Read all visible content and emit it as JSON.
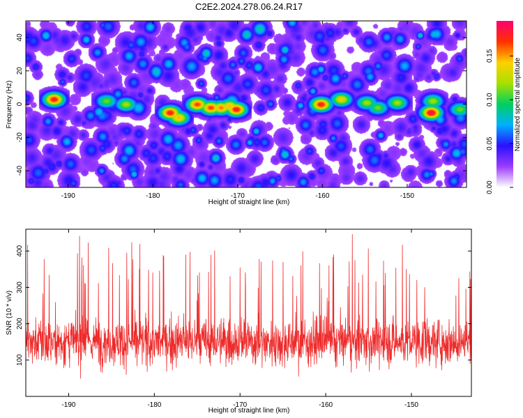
{
  "title": "C2E2.2024.278.06.24.R17",
  "colors": {
    "line": "#ee2a2a",
    "colormap": [
      "#ffffff",
      "#9c3cff",
      "#2a10ff",
      "#00b0ff",
      "#00d060",
      "#a8e000",
      "#ffd000",
      "#ff3000",
      "#ff0070"
    ]
  },
  "chart_data": [
    {
      "type": "heatmap",
      "xlabel": "Height of straight line (km)",
      "ylabel": "Frequency (Hz)",
      "xlim": [
        -195,
        -143
      ],
      "ylim": [
        -50,
        50
      ],
      "xticks": [
        "-190",
        "-180",
        "-170",
        "-160",
        "-150"
      ],
      "yticks": [
        "-40",
        "-20",
        "0",
        "20",
        "40"
      ],
      "colorbar": {
        "label": "Normalized spectral amplitude",
        "range": [
          0.0,
          0.19
        ],
        "ticks": [
          "0.00",
          "0.05",
          "0.10",
          "0.15"
        ]
      },
      "background_noise_level": 0.03,
      "hotspots": [
        {
          "x": -191.7,
          "y": 3,
          "value": 0.17
        },
        {
          "x": -185.5,
          "y": 2,
          "value": 0.1
        },
        {
          "x": -183.2,
          "y": 0,
          "value": 0.11
        },
        {
          "x": -178.0,
          "y": -5,
          "value": 0.17
        },
        {
          "x": -177.0,
          "y": -8,
          "value": 0.14
        },
        {
          "x": -174.8,
          "y": 0,
          "value": 0.16
        },
        {
          "x": -173.2,
          "y": -2,
          "value": 0.16
        },
        {
          "x": -172.0,
          "y": -2,
          "value": 0.15
        },
        {
          "x": -171.0,
          "y": -1,
          "value": 0.14
        },
        {
          "x": -170.2,
          "y": -3,
          "value": 0.17
        },
        {
          "x": -160.2,
          "y": 0,
          "value": 0.17
        },
        {
          "x": -157.8,
          "y": 3,
          "value": 0.13
        },
        {
          "x": -154.8,
          "y": 1,
          "value": 0.11
        },
        {
          "x": -153.5,
          "y": -2,
          "value": 0.1
        },
        {
          "x": -151.2,
          "y": 1,
          "value": 0.11
        },
        {
          "x": -147.2,
          "y": -5,
          "value": 0.18
        },
        {
          "x": -147.0,
          "y": 2,
          "value": 0.11
        },
        {
          "x": -143.8,
          "y": -3,
          "value": 0.1
        }
      ]
    },
    {
      "type": "line",
      "xlabel": "Height of straight line (km)",
      "ylabel": "SNR (10 * v/v)",
      "xlim": [
        -195,
        -143
      ],
      "ylim": [
        0,
        460
      ],
      "xticks": [
        "-190",
        "-180",
        "-170",
        "-160",
        "-150"
      ],
      "yticks": [
        "100",
        "200",
        "300",
        "400"
      ],
      "series": [
        {
          "points_count": 1700,
          "y_center": 150,
          "y_spread": 45,
          "y_min": 0,
          "y_max": 460
        }
      ]
    }
  ]
}
